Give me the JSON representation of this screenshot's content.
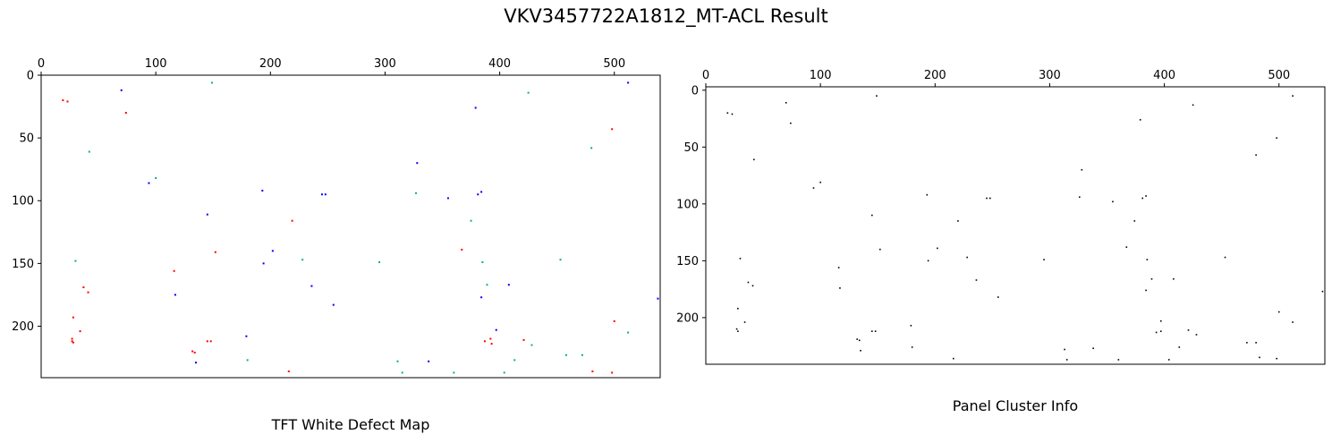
{
  "figure": {
    "title": "VKV3457722A1812_MT-ACL Result"
  },
  "chart_data": [
    {
      "type": "scatter",
      "title": "TFT White Defect Map",
      "xlim": [
        0,
        540
      ],
      "ylim": [
        241,
        0
      ],
      "x_ticks": [
        0,
        100,
        200,
        300,
        400,
        500
      ],
      "y_ticks": [
        0,
        50,
        100,
        150,
        200
      ],
      "x_axis_position": "top",
      "grid": false,
      "legend": "none",
      "series": [
        {
          "color": "#ff0000",
          "points": [
            [
              19,
              20
            ],
            [
              23,
              21
            ],
            [
              74,
              30
            ],
            [
              498,
              43
            ],
            [
              219,
              116
            ],
            [
              152,
              141
            ],
            [
              367,
              139
            ],
            [
              116,
              156
            ],
            [
              37,
              169
            ],
            [
              41,
              173
            ],
            [
              28,
              193
            ],
            [
              27,
              210
            ],
            [
              27,
              212
            ],
            [
              28,
              213
            ],
            [
              34,
              204
            ],
            [
              132,
              220
            ],
            [
              134,
              221
            ],
            [
              145,
              212
            ],
            [
              148,
              212
            ],
            [
              387,
              212
            ],
            [
              392,
              210
            ],
            [
              393,
              214
            ],
            [
              421,
              211
            ],
            [
              500,
              196
            ],
            [
              498,
              237
            ],
            [
              481,
              236
            ],
            [
              216,
              236
            ]
          ]
        },
        {
          "color": "#00b08c",
          "points": [
            [
              149,
              6
            ],
            [
              425,
              14
            ],
            [
              42,
              61
            ],
            [
              480,
              58
            ],
            [
              100,
              82
            ],
            [
              327,
              94
            ],
            [
              375,
              116
            ],
            [
              30,
              148
            ],
            [
              228,
              147
            ],
            [
              295,
              149
            ],
            [
              385,
              149
            ],
            [
              453,
              147
            ],
            [
              389,
              167
            ],
            [
              512,
              205
            ],
            [
              428,
              215
            ],
            [
              472,
              223
            ],
            [
              458,
              223
            ],
            [
              180,
              227
            ],
            [
              311,
              228
            ],
            [
              315,
              237
            ],
            [
              360,
              237
            ],
            [
              404,
              237
            ],
            [
              413,
              227
            ]
          ]
        },
        {
          "color": "#0000ff",
          "points": [
            [
              70,
              12
            ],
            [
              512,
              6
            ],
            [
              379,
              26
            ],
            [
              328,
              70
            ],
            [
              94,
              86
            ],
            [
              193,
              92
            ],
            [
              245,
              95
            ],
            [
              248,
              95
            ],
            [
              355,
              98
            ],
            [
              381,
              95
            ],
            [
              384,
              93
            ],
            [
              145,
              111
            ],
            [
              202,
              140
            ],
            [
              194,
              150
            ],
            [
              117,
              175
            ],
            [
              236,
              168
            ],
            [
              255,
              183
            ],
            [
              384,
              177
            ],
            [
              408,
              167
            ],
            [
              538,
              178
            ],
            [
              397,
              203
            ],
            [
              179,
              208
            ],
            [
              135,
              229
            ],
            [
              338,
              228
            ]
          ]
        }
      ]
    },
    {
      "type": "scatter",
      "title": "Panel Cluster Info",
      "xlim": [
        0,
        540
      ],
      "ylim": [
        241,
        -3
      ],
      "x_ticks": [
        0,
        100,
        200,
        300,
        400,
        500
      ],
      "y_ticks": [
        0,
        50,
        100,
        150,
        200
      ],
      "x_axis_position": "top",
      "grid": false,
      "legend": "none",
      "series": [
        {
          "color": "#000000",
          "points": [
            [
              149,
              5
            ],
            [
              512,
              5
            ],
            [
              70,
              11
            ],
            [
              425,
              13
            ],
            [
              19,
              20
            ],
            [
              23,
              21
            ],
            [
              379,
              26
            ],
            [
              74,
              29
            ],
            [
              498,
              42
            ],
            [
              480,
              57
            ],
            [
              42,
              61
            ],
            [
              328,
              70
            ],
            [
              100,
              81
            ],
            [
              94,
              86
            ],
            [
              193,
              92
            ],
            [
              326,
              94
            ],
            [
              245,
              95
            ],
            [
              248,
              95
            ],
            [
              381,
              95
            ],
            [
              384,
              93
            ],
            [
              355,
              98
            ],
            [
              145,
              110
            ],
            [
              220,
              115
            ],
            [
              374,
              115
            ],
            [
              202,
              139
            ],
            [
              152,
              140
            ],
            [
              367,
              138
            ],
            [
              30,
              148
            ],
            [
              228,
              147
            ],
            [
              295,
              149
            ],
            [
              385,
              149
            ],
            [
              453,
              147
            ],
            [
              194,
              150
            ],
            [
              116,
              156
            ],
            [
              37,
              169
            ],
            [
              41,
              172
            ],
            [
              117,
              174
            ],
            [
              236,
              167
            ],
            [
              389,
              166
            ],
            [
              408,
              166
            ],
            [
              384,
              176
            ],
            [
              538,
              177
            ],
            [
              255,
              182
            ],
            [
              28,
              192
            ],
            [
              397,
              203
            ],
            [
              34,
              204
            ],
            [
              512,
              204
            ],
            [
              500,
              195
            ],
            [
              179,
              207
            ],
            [
              27,
              210
            ],
            [
              28,
              212
            ],
            [
              393,
              213
            ],
            [
              397,
              212
            ],
            [
              421,
              211
            ],
            [
              428,
              215
            ],
            [
              145,
              212
            ],
            [
              148,
              212
            ],
            [
              132,
              219
            ],
            [
              134,
              220
            ],
            [
              135,
              229
            ],
            [
              472,
              222
            ],
            [
              480,
              222
            ],
            [
              180,
              226
            ],
            [
              313,
              228
            ],
            [
              338,
              227
            ],
            [
              413,
              226
            ],
            [
              216,
              236
            ],
            [
              315,
              237
            ],
            [
              360,
              237
            ],
            [
              404,
              237
            ],
            [
              498,
              236
            ],
            [
              483,
              235
            ]
          ]
        }
      ]
    }
  ]
}
